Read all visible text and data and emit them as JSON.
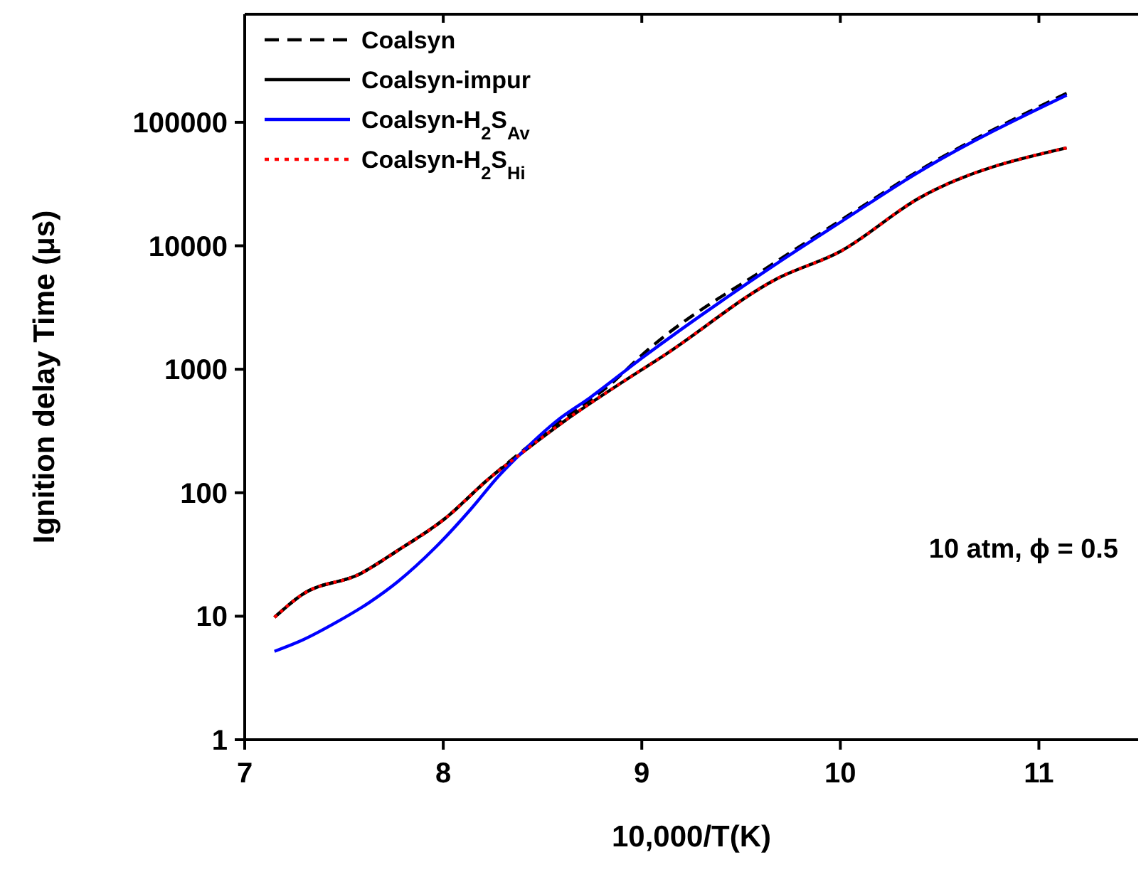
{
  "chart_data": {
    "type": "line",
    "xlabel": "10,000/T(K)",
    "ylabel": "Ignition delay Time (μs)",
    "log": "y",
    "xlim": [
      7,
      11.5
    ],
    "ylim": [
      1,
      750000
    ],
    "xticks": [
      7,
      8,
      9,
      10,
      11
    ],
    "yticks": [
      1,
      10,
      100,
      1000,
      10000,
      100000
    ],
    "legend": "top left",
    "grid": false,
    "marker": "none",
    "annotations": [
      "10 atm, ϕ = 0.5"
    ],
    "series": [
      {
        "name": "Coalsyn",
        "color": "#000000",
        "line_style": "dashed",
        "x": [
          7.15,
          7.29,
          7.58,
          7.77,
          8.01,
          8.23,
          8.37,
          8.61,
          8.86,
          9.0,
          9.67,
          10.0,
          10.4,
          11.14
        ],
        "values": [
          9.8,
          15,
          22,
          34,
          62,
          130,
          200,
          400,
          800,
          1300,
          7300,
          16000,
          41000,
          172000
        ]
      },
      {
        "name": "Coalsyn-impur",
        "color": "#000000",
        "line_style": "solid",
        "x": [
          7.15,
          7.29,
          7.58,
          7.77,
          8.01,
          8.23,
          8.37,
          8.61,
          8.86,
          9.12,
          9.68,
          10.0,
          10.4,
          11.14
        ],
        "values": [
          9.8,
          15,
          22,
          34,
          62,
          130,
          195,
          380,
          710,
          1320,
          5400,
          9000,
          24500,
          62000
        ]
      },
      {
        "name": "Coalsyn-H$_{2}$S$_{Av}$",
        "color": "#0000ff",
        "line_style": "solid",
        "x": [
          7.15,
          7.29,
          7.46,
          7.63,
          7.77,
          7.96,
          8.14,
          8.28,
          8.4,
          8.57,
          8.74,
          9.0,
          9.67,
          10.0,
          10.4,
          11.14
        ],
        "values": [
          5.2,
          6.4,
          8.9,
          13,
          19,
          36,
          74,
          137,
          215,
          380,
          590,
          1230,
          7000,
          15500,
          40000,
          166000
        ]
      },
      {
        "name": "Coalsyn-H$_{2}$S$_{Hi}$",
        "color": "#ff0000",
        "line_style": "dotted",
        "x": [
          7.15,
          7.29,
          7.58,
          7.77,
          8.01,
          8.23,
          8.37,
          8.61,
          8.86,
          9.12,
          9.68,
          10.0,
          10.4,
          11.14
        ],
        "values": [
          9.8,
          15,
          22,
          34,
          62,
          130,
          195,
          380,
          710,
          1320,
          5400,
          9000,
          24500,
          62000
        ]
      }
    ]
  }
}
